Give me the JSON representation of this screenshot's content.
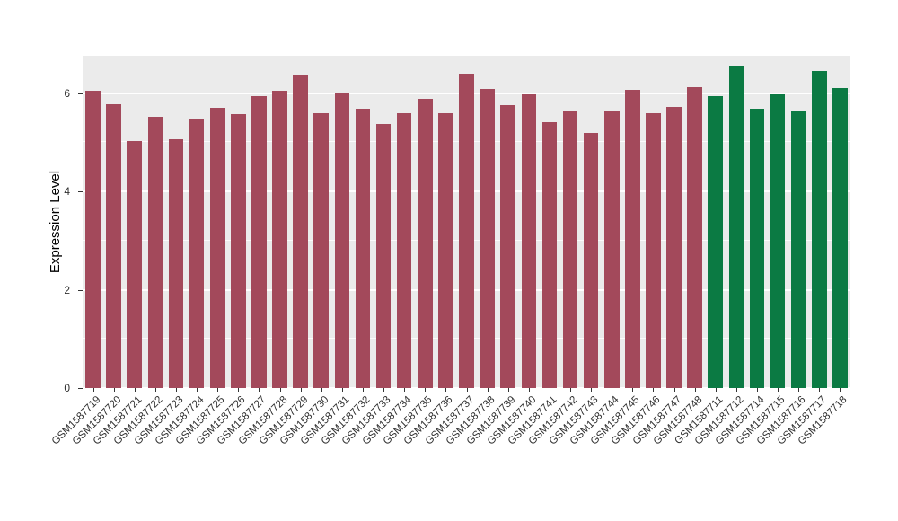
{
  "page": {
    "background": "#FFFFFF"
  },
  "chart_data": {
    "type": "bar",
    "title": "",
    "xlabel": "",
    "ylabel": "Expression Level",
    "ylim": [
      0,
      6.76
    ],
    "yticks": [
      0,
      2,
      4,
      6
    ],
    "minor_gridlines": [
      1,
      3,
      5
    ],
    "grid": "on",
    "legend": "none",
    "panel_background": "#EBEBEB",
    "gridline_color": "#FFFFFF",
    "categories": [
      "GSM1587719",
      "GSM1587720",
      "GSM1587721",
      "GSM1587722",
      "GSM1587723",
      "GSM1587724",
      "GSM1587725",
      "GSM1587726",
      "GSM1587727",
      "GSM1587728",
      "GSM1587729",
      "GSM1587730",
      "GSM1587731",
      "GSM1587732",
      "GSM1587733",
      "GSM1587734",
      "GSM1587735",
      "GSM1587736",
      "GSM1587737",
      "GSM1587738",
      "GSM1587739",
      "GSM1587740",
      "GSM1587741",
      "GSM1587742",
      "GSM1587743",
      "GSM1587744",
      "GSM1587745",
      "GSM1587746",
      "GSM1587747",
      "GSM1587748",
      "GSM1587711",
      "GSM1587712",
      "GSM1587714",
      "GSM1587715",
      "GSM1587716",
      "GSM1587717",
      "GSM1587718"
    ],
    "values": [
      6.05,
      5.78,
      5.02,
      5.52,
      5.06,
      5.48,
      5.7,
      5.58,
      5.93,
      6.05,
      6.35,
      5.6,
      6.0,
      5.68,
      5.38,
      5.6,
      5.88,
      5.6,
      6.4,
      6.08,
      5.75,
      5.98,
      5.4,
      5.62,
      5.18,
      5.63,
      6.07,
      5.6,
      5.72,
      6.12,
      5.93,
      6.55,
      5.68,
      5.97,
      5.63,
      6.45,
      6.1
    ],
    "groups": [
      "red",
      "red",
      "red",
      "red",
      "red",
      "red",
      "red",
      "red",
      "red",
      "red",
      "red",
      "red",
      "red",
      "red",
      "red",
      "red",
      "red",
      "red",
      "red",
      "red",
      "red",
      "red",
      "red",
      "red",
      "red",
      "red",
      "red",
      "red",
      "red",
      "red",
      "green",
      "green",
      "green",
      "green",
      "green",
      "green",
      "green"
    ],
    "colors": {
      "red": "#A3495B",
      "green": "#0B7A43"
    }
  }
}
